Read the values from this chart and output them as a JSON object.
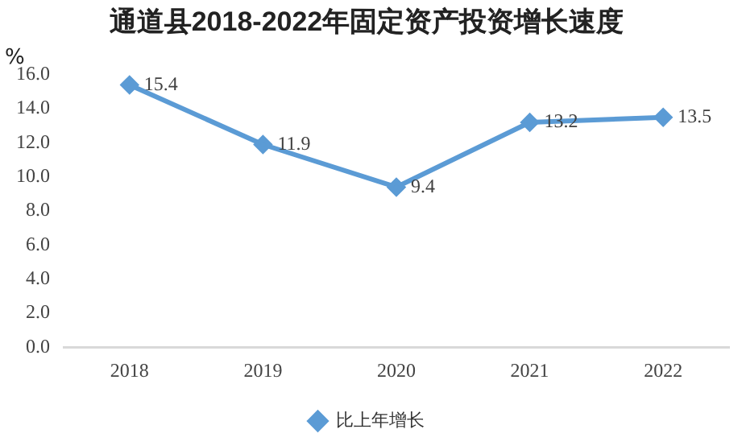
{
  "chart_data": {
    "type": "line",
    "title": "通道县2018-2022年固定资产投资增长速度",
    "ylabel": "%",
    "categories": [
      "2018",
      "2019",
      "2020",
      "2021",
      "2022"
    ],
    "series": [
      {
        "name": "比上年增长",
        "color": "#5b9bd5",
        "values": [
          15.4,
          11.9,
          9.4,
          13.2,
          13.5
        ]
      }
    ],
    "ylim": [
      0,
      16
    ],
    "yticks": [
      {
        "value": 0,
        "label": "0.0"
      },
      {
        "value": 2,
        "label": "2.0"
      },
      {
        "value": 4,
        "label": "4.0"
      },
      {
        "value": 6,
        "label": "6.0"
      },
      {
        "value": 8,
        "label": "8.0"
      },
      {
        "value": 10,
        "label": "10.0"
      },
      {
        "value": 12,
        "label": "12.0"
      },
      {
        "value": 14,
        "label": "14.0"
      },
      {
        "value": 16,
        "label": "16.0"
      }
    ],
    "grid": false,
    "legend": "bottom",
    "marker": "diamond",
    "line_style": "solid",
    "data_labels": true
  }
}
